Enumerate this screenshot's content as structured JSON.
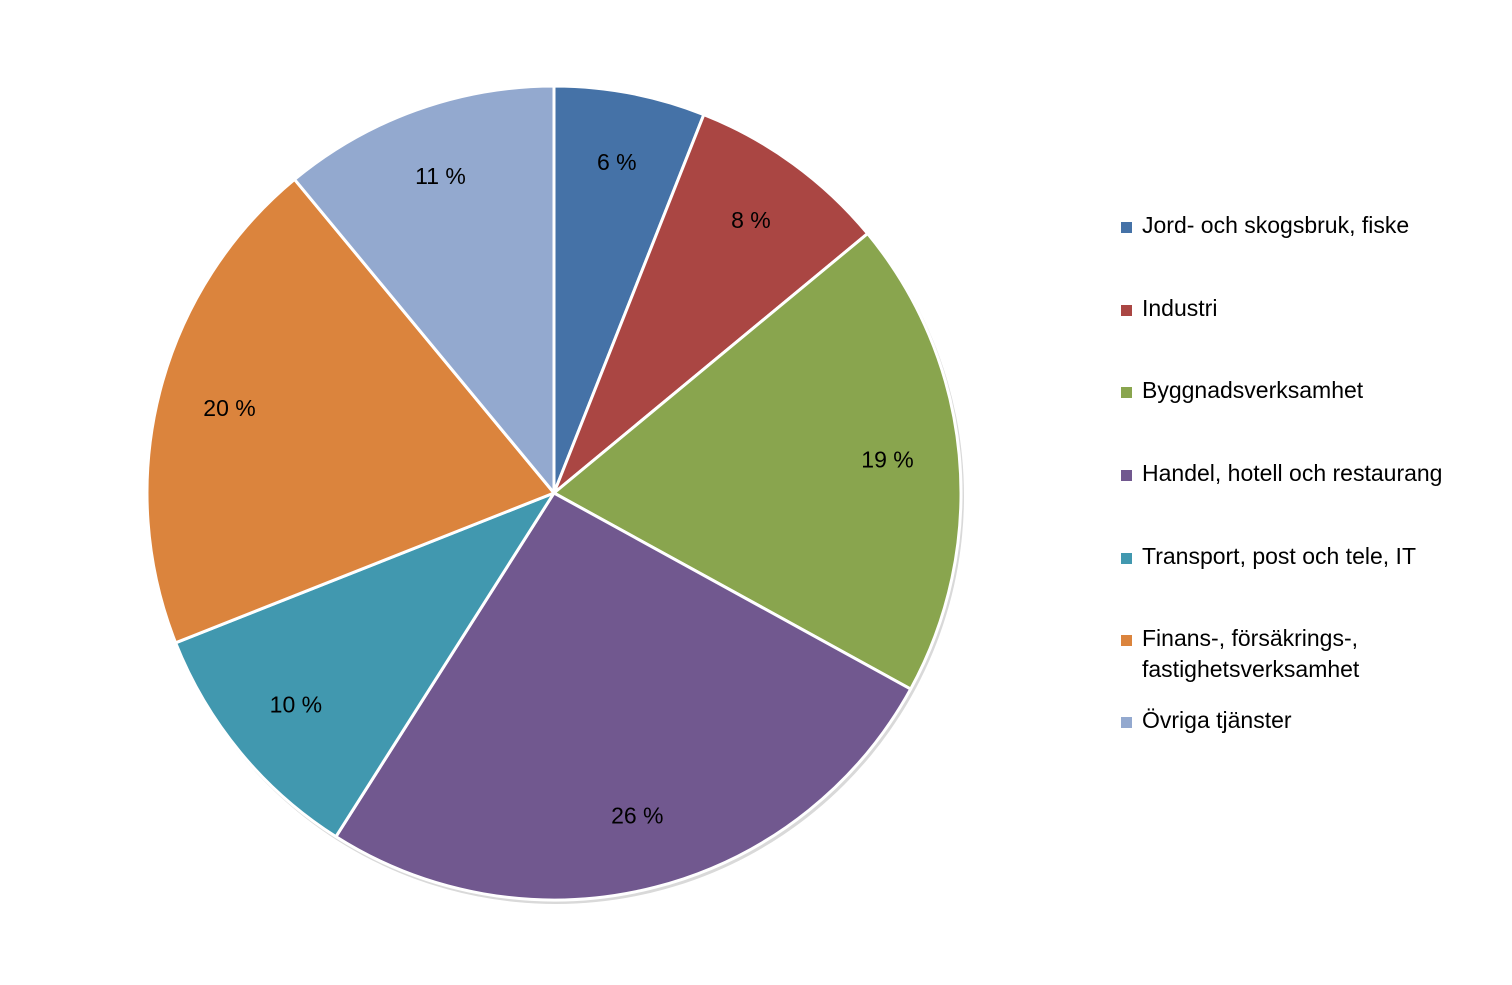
{
  "chart_data": {
    "type": "pie",
    "start_angle_deg": 0,
    "direction": "clockwise",
    "legend_position": "right",
    "slices": [
      {
        "label": "Jord- och skogsbruk, fiske",
        "value": 6,
        "value_label": "6 %",
        "color": "#4572A7"
      },
      {
        "label": "Industri",
        "value": 8,
        "value_label": "8 %",
        "color": "#AA4643"
      },
      {
        "label": "Byggnadsverksamhet",
        "value": 19,
        "value_label": "19 %",
        "color": "#89A54E"
      },
      {
        "label": "Handel, hotell och restaurang",
        "value": 26,
        "value_label": "26 %",
        "color": "#71588F"
      },
      {
        "label": "Transport, post och tele, IT",
        "value": 10,
        "value_label": "10 %",
        "color": "#4198AF"
      },
      {
        "label": "Finans-, försäkrings-, fastighetsverksamhet",
        "value": 20,
        "value_label": "20 %",
        "color": "#DB843D"
      },
      {
        "label": "Övriga tjänster",
        "value": 11,
        "value_label": "11 %",
        "color": "#93A9CF"
      }
    ]
  },
  "legend": {
    "items": [
      {
        "line1": "Jord- och skogsbruk, fiske",
        "line2": ""
      },
      {
        "line1": "Industri",
        "line2": ""
      },
      {
        "line1": "Byggnadsverksamhet",
        "line2": ""
      },
      {
        "line1": "Handel, hotell och restaurang",
        "line2": ""
      },
      {
        "line1": "Transport, post och tele, IT",
        "line2": ""
      },
      {
        "line1": "Finans-, försäkrings-,",
        "line2": "fastighetsverksamhet"
      },
      {
        "line1": "Övriga tjänster",
        "line2": ""
      }
    ]
  }
}
